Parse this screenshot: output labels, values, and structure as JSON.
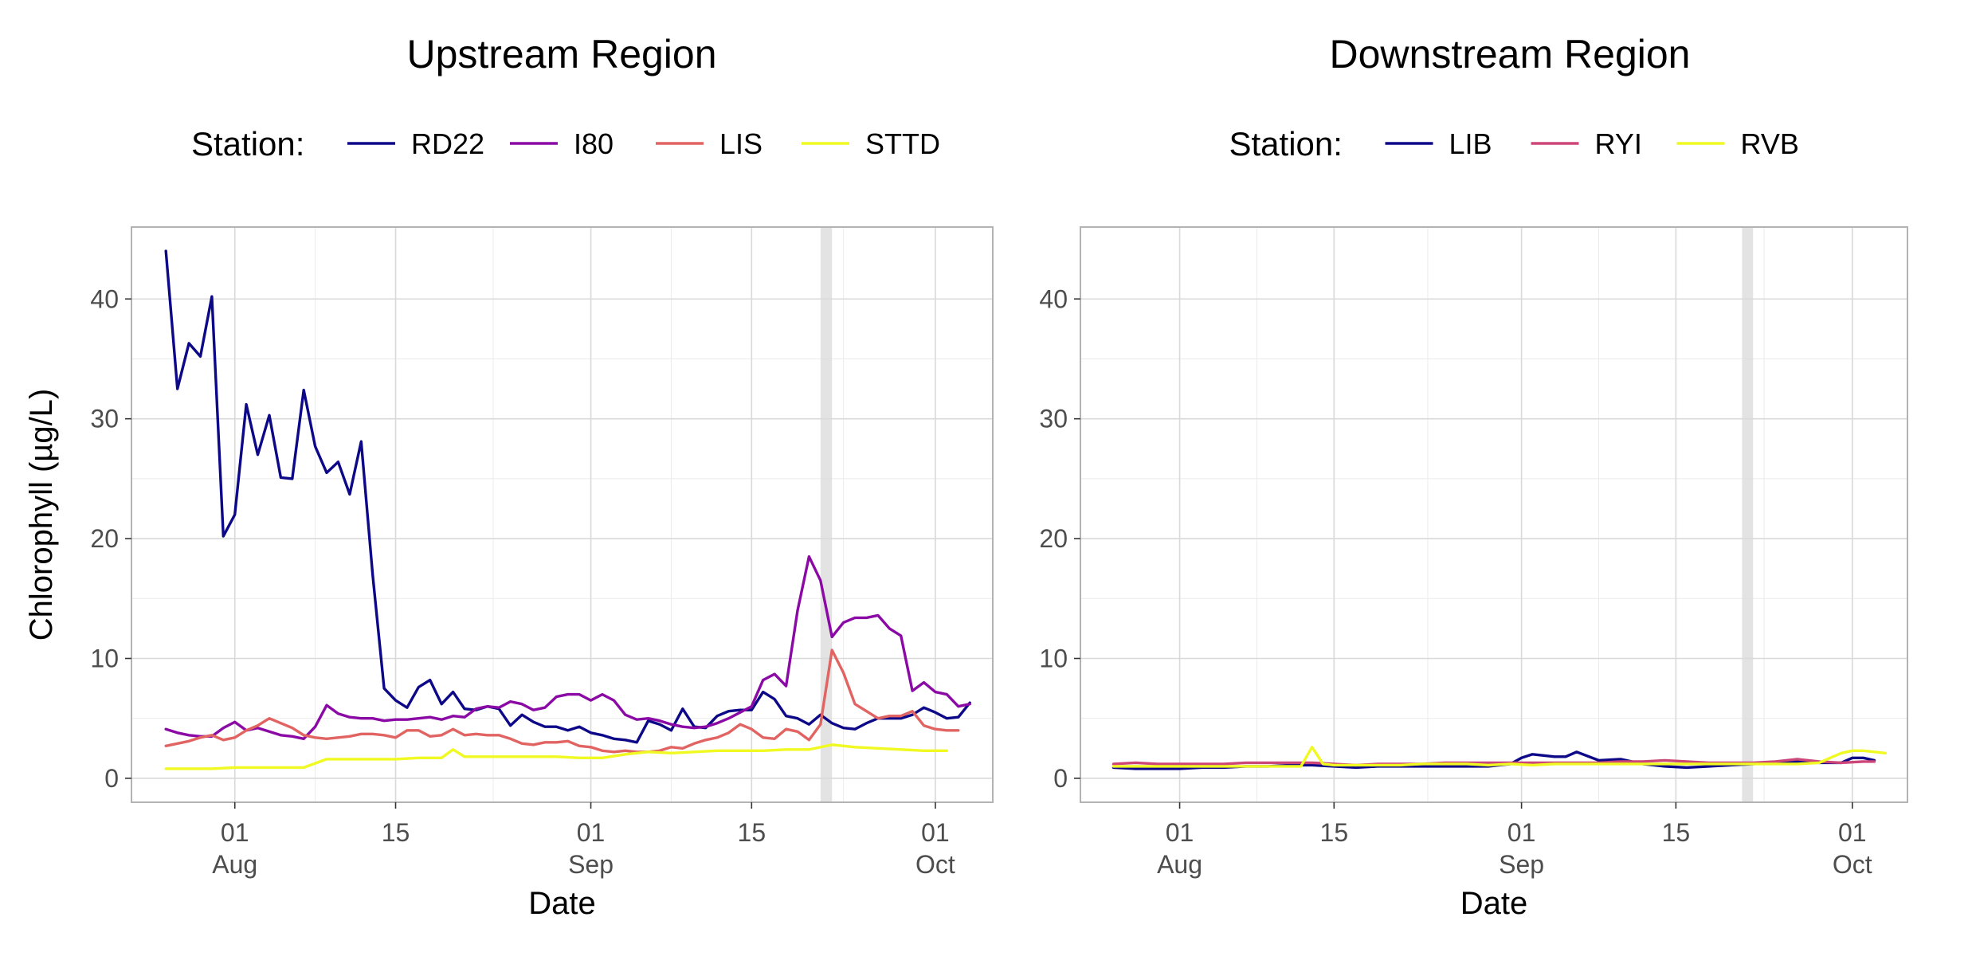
{
  "chart_data": [
    {
      "type": "line",
      "title": "Upstream Region",
      "xlabel": "Date",
      "ylabel": "Chlorophyll (µg/L)",
      "legend_title": "Station:",
      "legend_position": "top",
      "grid": true,
      "x_range": [
        "2014-07-23",
        "2014-10-06"
      ],
      "ylim": [
        -2,
        46
      ],
      "y_ticks": [
        0,
        10,
        20,
        30,
        40
      ],
      "x_ticks": [
        {
          "date": "2014-08-01",
          "line1": "01",
          "line2": "Aug"
        },
        {
          "date": "2014-08-15",
          "line1": "15",
          "line2": ""
        },
        {
          "date": "2014-09-01",
          "line1": "01",
          "line2": "Sep"
        },
        {
          "date": "2014-09-15",
          "line1": "15",
          "line2": ""
        },
        {
          "date": "2014-10-01",
          "line1": "01",
          "line2": "Oct"
        }
      ],
      "shaded_band": [
        "2014-09-21",
        "2014-09-22"
      ],
      "series": [
        {
          "name": "RD22",
          "color": "#0d0887",
          "x": [
            "2014-07-26",
            "2014-07-27",
            "2014-07-28",
            "2014-07-29",
            "2014-07-30",
            "2014-07-31",
            "2014-08-01",
            "2014-08-02",
            "2014-08-03",
            "2014-08-04",
            "2014-08-05",
            "2014-08-06",
            "2014-08-07",
            "2014-08-08",
            "2014-08-09",
            "2014-08-10",
            "2014-08-11",
            "2014-08-12",
            "2014-08-13",
            "2014-08-14",
            "2014-08-15",
            "2014-08-16",
            "2014-08-17",
            "2014-08-18",
            "2014-08-19",
            "2014-08-20",
            "2014-08-21",
            "2014-08-22",
            "2014-08-23",
            "2014-08-24",
            "2014-08-25",
            "2014-08-26",
            "2014-08-27",
            "2014-08-28",
            "2014-08-29",
            "2014-08-30",
            "2014-08-31",
            "2014-09-01",
            "2014-09-02",
            "2014-09-03",
            "2014-09-04",
            "2014-09-05",
            "2014-09-06",
            "2014-09-07",
            "2014-09-08",
            "2014-09-09",
            "2014-09-10",
            "2014-09-11",
            "2014-09-12",
            "2014-09-13",
            "2014-09-14",
            "2014-09-15",
            "2014-09-16",
            "2014-09-17",
            "2014-09-18",
            "2014-09-19",
            "2014-09-20",
            "2014-09-21",
            "2014-09-22",
            "2014-09-23",
            "2014-09-24",
            "2014-09-25",
            "2014-09-26",
            "2014-09-27",
            "2014-09-28",
            "2014-09-29",
            "2014-09-30",
            "2014-10-01",
            "2014-10-02",
            "2014-10-03",
            "2014-10-04"
          ],
          "values": [
            44.0,
            32.5,
            36.3,
            35.2,
            40.2,
            20.2,
            22.0,
            31.2,
            27.0,
            30.3,
            25.1,
            25.0,
            32.4,
            27.7,
            25.5,
            26.4,
            23.7,
            28.1,
            17.0,
            7.5,
            6.5,
            5.9,
            7.6,
            8.2,
            6.2,
            7.2,
            5.8,
            5.7,
            6.0,
            5.8,
            4.4,
            5.3,
            4.7,
            4.3,
            4.3,
            4.0,
            4.3,
            3.8,
            3.6,
            3.3,
            3.2,
            3.0,
            4.8,
            4.5,
            4.0,
            5.8,
            4.3,
            4.2,
            5.2,
            5.6,
            5.7,
            5.7,
            7.2,
            6.6,
            5.2,
            5.0,
            4.5,
            5.3,
            4.6,
            4.2,
            4.1,
            4.6,
            5.0,
            5.0,
            5.0,
            5.3,
            5.9,
            5.5,
            5.0,
            5.1,
            6.3
          ]
        },
        {
          "name": "I80",
          "color": "#8b0aa5",
          "x": [
            "2014-07-26",
            "2014-07-27",
            "2014-07-28",
            "2014-07-29",
            "2014-07-30",
            "2014-07-31",
            "2014-08-01",
            "2014-08-02",
            "2014-08-03",
            "2014-08-04",
            "2014-08-05",
            "2014-08-06",
            "2014-08-07",
            "2014-08-08",
            "2014-08-09",
            "2014-08-10",
            "2014-08-11",
            "2014-08-12",
            "2014-08-13",
            "2014-08-14",
            "2014-08-15",
            "2014-08-16",
            "2014-08-17",
            "2014-08-18",
            "2014-08-19",
            "2014-08-20",
            "2014-08-21",
            "2014-08-22",
            "2014-08-23",
            "2014-08-24",
            "2014-08-25",
            "2014-08-26",
            "2014-08-27",
            "2014-08-28",
            "2014-08-29",
            "2014-08-30",
            "2014-08-31",
            "2014-09-01",
            "2014-09-02",
            "2014-09-03",
            "2014-09-04",
            "2014-09-05",
            "2014-09-06",
            "2014-09-07",
            "2014-09-08",
            "2014-09-09",
            "2014-09-10",
            "2014-09-11",
            "2014-09-12",
            "2014-09-13",
            "2014-09-14",
            "2014-09-15",
            "2014-09-16",
            "2014-09-17",
            "2014-09-18",
            "2014-09-19",
            "2014-09-20",
            "2014-09-21",
            "2014-09-22",
            "2014-09-23",
            "2014-09-24",
            "2014-09-25",
            "2014-09-26",
            "2014-09-27",
            "2014-09-28",
            "2014-09-29",
            "2014-09-30",
            "2014-10-01",
            "2014-10-02",
            "2014-10-03",
            "2014-10-04"
          ],
          "values": [
            4.1,
            3.8,
            3.6,
            3.5,
            3.5,
            4.2,
            4.7,
            4.0,
            4.2,
            3.9,
            3.6,
            3.5,
            3.3,
            4.3,
            6.1,
            5.4,
            5.1,
            5.0,
            5.0,
            4.8,
            4.9,
            4.9,
            5.0,
            5.1,
            4.9,
            5.2,
            5.1,
            5.8,
            6.0,
            5.9,
            6.4,
            6.2,
            5.7,
            5.9,
            6.8,
            7.0,
            7.0,
            6.5,
            7.0,
            6.5,
            5.3,
            4.9,
            5.0,
            4.8,
            4.5,
            4.3,
            4.2,
            4.3,
            4.6,
            5.0,
            5.5,
            6.0,
            8.2,
            8.7,
            7.7,
            14.0,
            18.5,
            16.5,
            11.8,
            13.0,
            13.4,
            13.4,
            13.6,
            12.5,
            11.9,
            7.3,
            8.0,
            7.2,
            7.0,
            6.0,
            6.2
          ]
        },
        {
          "name": "LIS",
          "color": "#e16462",
          "x": [
            "2014-07-26",
            "2014-07-27",
            "2014-07-28",
            "2014-07-29",
            "2014-07-30",
            "2014-07-31",
            "2014-08-01",
            "2014-08-02",
            "2014-08-03",
            "2014-08-04",
            "2014-08-05",
            "2014-08-06",
            "2014-08-07",
            "2014-08-08",
            "2014-08-09",
            "2014-08-10",
            "2014-08-11",
            "2014-08-12",
            "2014-08-13",
            "2014-08-14",
            "2014-08-15",
            "2014-08-16",
            "2014-08-17",
            "2014-08-18",
            "2014-08-19",
            "2014-08-20",
            "2014-08-21",
            "2014-08-22",
            "2014-08-23",
            "2014-08-24",
            "2014-08-25",
            "2014-08-26",
            "2014-08-27",
            "2014-08-28",
            "2014-08-29",
            "2014-08-30",
            "2014-08-31",
            "2014-09-01",
            "2014-09-02",
            "2014-09-03",
            "2014-09-04",
            "2014-09-05",
            "2014-09-06",
            "2014-09-07",
            "2014-09-08",
            "2014-09-09",
            "2014-09-10",
            "2014-09-11",
            "2014-09-12",
            "2014-09-13",
            "2014-09-14",
            "2014-09-15",
            "2014-09-16",
            "2014-09-17",
            "2014-09-18",
            "2014-09-19",
            "2014-09-20",
            "2014-09-21",
            "2014-09-22",
            "2014-09-23",
            "2014-09-24",
            "2014-09-25",
            "2014-09-26",
            "2014-09-27",
            "2014-09-28",
            "2014-09-29",
            "2014-09-30",
            "2014-10-01",
            "2014-10-02",
            "2014-10-03"
          ],
          "values": [
            2.7,
            2.9,
            3.1,
            3.4,
            3.6,
            3.2,
            3.4,
            4.0,
            4.4,
            5.0,
            4.6,
            4.2,
            3.6,
            3.4,
            3.3,
            3.4,
            3.5,
            3.7,
            3.7,
            3.6,
            3.4,
            4.0,
            4.0,
            3.5,
            3.6,
            4.1,
            3.6,
            3.7,
            3.6,
            3.6,
            3.3,
            2.9,
            2.8,
            3.0,
            3.0,
            3.1,
            2.7,
            2.6,
            2.3,
            2.2,
            2.3,
            2.2,
            2.2,
            2.3,
            2.6,
            2.5,
            2.9,
            3.2,
            3.4,
            3.8,
            4.5,
            4.1,
            3.4,
            3.3,
            4.1,
            3.9,
            3.2,
            4.5,
            10.7,
            8.8,
            6.2,
            5.6,
            5.0,
            5.2,
            5.2,
            5.6,
            4.4,
            4.1,
            4.0,
            4.0
          ]
        },
        {
          "name": "STTD",
          "color": "#f0f921",
          "x": [
            "2014-07-26",
            "2014-07-28",
            "2014-07-30",
            "2014-08-01",
            "2014-08-03",
            "2014-08-05",
            "2014-08-07",
            "2014-08-09",
            "2014-08-11",
            "2014-08-13",
            "2014-08-15",
            "2014-08-17",
            "2014-08-19",
            "2014-08-20",
            "2014-08-21",
            "2014-08-23",
            "2014-08-25",
            "2014-08-27",
            "2014-08-29",
            "2014-08-31",
            "2014-09-02",
            "2014-09-04",
            "2014-09-06",
            "2014-09-08",
            "2014-09-10",
            "2014-09-12",
            "2014-09-14",
            "2014-09-16",
            "2014-09-18",
            "2014-09-20",
            "2014-09-22",
            "2014-09-24",
            "2014-09-26",
            "2014-09-28",
            "2014-09-30",
            "2014-10-02"
          ],
          "values": [
            0.8,
            0.8,
            0.8,
            0.9,
            0.9,
            0.9,
            0.9,
            1.6,
            1.6,
            1.6,
            1.6,
            1.7,
            1.7,
            2.4,
            1.8,
            1.8,
            1.8,
            1.8,
            1.8,
            1.7,
            1.7,
            2.0,
            2.2,
            2.1,
            2.2,
            2.3,
            2.3,
            2.3,
            2.4,
            2.4,
            2.8,
            2.6,
            2.5,
            2.4,
            2.3,
            2.3
          ]
        }
      ]
    },
    {
      "type": "line",
      "title": "Downstream Region",
      "xlabel": "Date",
      "ylabel": "",
      "legend_title": "Station:",
      "legend_position": "top",
      "grid": true,
      "x_range": [
        "2014-07-23",
        "2014-10-06"
      ],
      "ylim": [
        -2,
        46
      ],
      "y_ticks": [
        0,
        10,
        20,
        30,
        40
      ],
      "x_ticks": [
        {
          "date": "2014-08-01",
          "line1": "01",
          "line2": "Aug"
        },
        {
          "date": "2014-08-15",
          "line1": "15",
          "line2": ""
        },
        {
          "date": "2014-09-01",
          "line1": "01",
          "line2": "Sep"
        },
        {
          "date": "2014-09-15",
          "line1": "15",
          "line2": ""
        },
        {
          "date": "2014-10-01",
          "line1": "01",
          "line2": "Oct"
        }
      ],
      "shaded_band": [
        "2014-09-21",
        "2014-09-22"
      ],
      "series": [
        {
          "name": "LIB",
          "color": "#0d0887",
          "x": [
            "2014-07-26",
            "2014-07-28",
            "2014-07-30",
            "2014-08-01",
            "2014-08-03",
            "2014-08-05",
            "2014-08-07",
            "2014-08-09",
            "2014-08-11",
            "2014-08-13",
            "2014-08-15",
            "2014-08-17",
            "2014-08-19",
            "2014-08-21",
            "2014-08-23",
            "2014-08-25",
            "2014-08-27",
            "2014-08-29",
            "2014-08-31",
            "2014-09-01",
            "2014-09-02",
            "2014-09-03",
            "2014-09-04",
            "2014-09-05",
            "2014-09-06",
            "2014-09-08",
            "2014-09-10",
            "2014-09-11",
            "2014-09-12",
            "2014-09-14",
            "2014-09-16",
            "2014-09-18",
            "2014-09-20",
            "2014-09-22",
            "2014-09-24",
            "2014-09-26",
            "2014-09-28",
            "2014-09-30",
            "2014-10-01",
            "2014-10-02",
            "2014-10-03"
          ],
          "values": [
            0.9,
            0.8,
            0.8,
            0.8,
            0.9,
            0.9,
            1.0,
            1.0,
            1.1,
            1.1,
            1.0,
            0.9,
            1.0,
            1.0,
            1.0,
            1.0,
            1.0,
            1.0,
            1.2,
            1.7,
            2.0,
            1.9,
            1.8,
            1.8,
            2.2,
            1.5,
            1.6,
            1.4,
            1.2,
            1.0,
            0.9,
            1.0,
            1.1,
            1.2,
            1.3,
            1.4,
            1.3,
            1.3,
            1.7,
            1.7,
            1.5
          ]
        },
        {
          "name": "RYI",
          "color": "#cc4778",
          "x": [
            "2014-07-26",
            "2014-07-28",
            "2014-07-30",
            "2014-08-01",
            "2014-08-03",
            "2014-08-05",
            "2014-08-07",
            "2014-08-09",
            "2014-08-11",
            "2014-08-13",
            "2014-08-15",
            "2014-08-17",
            "2014-08-19",
            "2014-08-21",
            "2014-08-23",
            "2014-08-25",
            "2014-08-27",
            "2014-08-29",
            "2014-08-31",
            "2014-09-02",
            "2014-09-04",
            "2014-09-06",
            "2014-09-08",
            "2014-09-10",
            "2014-09-12",
            "2014-09-14",
            "2014-09-16",
            "2014-09-18",
            "2014-09-20",
            "2014-09-22",
            "2014-09-24",
            "2014-09-26",
            "2014-09-28",
            "2014-09-30",
            "2014-10-02",
            "2014-10-03"
          ],
          "values": [
            1.2,
            1.3,
            1.2,
            1.2,
            1.2,
            1.2,
            1.3,
            1.3,
            1.3,
            1.3,
            1.2,
            1.1,
            1.2,
            1.2,
            1.2,
            1.3,
            1.3,
            1.3,
            1.3,
            1.3,
            1.3,
            1.3,
            1.3,
            1.4,
            1.4,
            1.5,
            1.4,
            1.3,
            1.3,
            1.3,
            1.4,
            1.6,
            1.4,
            1.3,
            1.4,
            1.4
          ]
        },
        {
          "name": "RVB",
          "color": "#f0f921",
          "x": [
            "2014-07-26",
            "2014-07-28",
            "2014-07-30",
            "2014-08-01",
            "2014-08-03",
            "2014-08-05",
            "2014-08-07",
            "2014-08-09",
            "2014-08-11",
            "2014-08-12",
            "2014-08-13",
            "2014-08-14",
            "2014-08-15",
            "2014-08-17",
            "2014-08-19",
            "2014-08-21",
            "2014-08-23",
            "2014-08-25",
            "2014-08-27",
            "2014-08-29",
            "2014-08-31",
            "2014-09-02",
            "2014-09-04",
            "2014-09-06",
            "2014-09-08",
            "2014-09-10",
            "2014-09-12",
            "2014-09-14",
            "2014-09-16",
            "2014-09-18",
            "2014-09-20",
            "2014-09-22",
            "2014-09-24",
            "2014-09-26",
            "2014-09-28",
            "2014-09-29",
            "2014-09-30",
            "2014-10-01",
            "2014-10-02",
            "2014-10-04"
          ],
          "values": [
            1.0,
            1.0,
            1.0,
            1.0,
            1.0,
            1.0,
            1.0,
            1.0,
            1.0,
            1.0,
            2.6,
            1.2,
            1.1,
            1.1,
            1.1,
            1.1,
            1.2,
            1.2,
            1.2,
            1.1,
            1.2,
            1.1,
            1.2,
            1.2,
            1.2,
            1.2,
            1.2,
            1.2,
            1.2,
            1.2,
            1.2,
            1.2,
            1.2,
            1.2,
            1.3,
            1.7,
            2.1,
            2.3,
            2.3,
            2.1
          ]
        }
      ]
    }
  ]
}
